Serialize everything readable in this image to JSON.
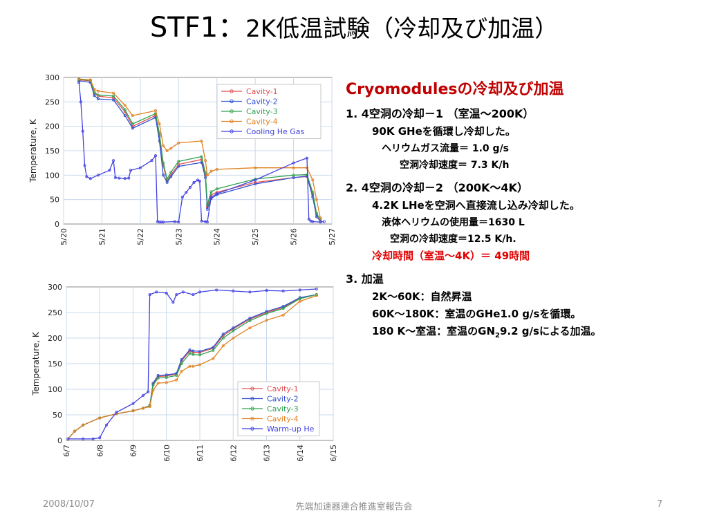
{
  "slide": {
    "title_main": "STF1：",
    "title_sub": "2K低温試験（冷却及び加温）"
  },
  "text": {
    "heading": "Cryomodulesの冷却及び加温",
    "item1_title": "1.  4空洞の冷却－1 （室温～200K）",
    "item1_line1": "90K GHeを循環し冷却した。",
    "item1_line2": "ヘリウムガス流量＝ 1.0 g/s",
    "item1_line3": "空洞冷却速度＝ 7.3 K/h",
    "item2_title": "2.  4空洞の冷却－2 （200K～4K）",
    "item2_line1": "4.2K LHeを空洞へ直接流し込み冷却した。",
    "item2_line2": "液体ヘリウムの使用量＝1630 L",
    "item2_line3": "空洞の冷却速度＝12.5 K/h.",
    "item2_time": "冷却時間（室温～4K）＝ 49時間",
    "item3_title": "3.  加温",
    "item3_line1": "2K～60K：自然昇温",
    "item3_line2": "60K～180K：室温のGHe1.0 g/sを循環。",
    "item3_line3_a": "180 K～室温：室温のGN",
    "item3_line3_sub": "2",
    "item3_line3_b": "9.2 g/sによる加温。"
  },
  "footer": {
    "date": "2008/10/07",
    "org": "先端加速器連合推進室報告会",
    "page": "7"
  },
  "chart_data": [
    {
      "type": "line",
      "title": "",
      "xlabel": "",
      "ylabel": "Temperature, K",
      "x_ticks": [
        "5/20",
        "5/21",
        "5/22",
        "5/23",
        "5/24",
        "5/25",
        "5/26",
        "5/27"
      ],
      "xlim": [
        0,
        7
      ],
      "ylim": [
        0,
        300
      ],
      "y_ticks": [
        0,
        50,
        100,
        150,
        200,
        250,
        300
      ],
      "grid": true,
      "legend_position": "top-right",
      "series": [
        {
          "name": "Cavity-1",
          "color": "#e05050",
          "x": [
            0.4,
            0.7,
            0.8,
            0.9,
            1.3,
            1.6,
            1.8,
            2.4,
            2.5,
            2.6,
            2.7,
            2.8,
            3.0,
            3.6,
            3.7,
            3.75,
            3.85,
            4.0,
            5.0,
            6.0,
            6.35,
            6.5,
            6.6,
            6.7
          ],
          "y": [
            295,
            293,
            268,
            262,
            258,
            230,
            200,
            222,
            180,
            120,
            88,
            100,
            122,
            132,
            100,
            35,
            60,
            65,
            85,
            95,
            97,
            60,
            20,
            8
          ]
        },
        {
          "name": "Cavity-2",
          "color": "#3050d0",
          "x": [
            0.4,
            0.7,
            0.8,
            0.9,
            1.3,
            1.6,
            1.8,
            2.4,
            2.5,
            2.6,
            2.7,
            2.8,
            3.0,
            3.6,
            3.7,
            3.75,
            3.85,
            4.0,
            5.0,
            6.0,
            6.35,
            6.5,
            6.6,
            6.7
          ],
          "y": [
            293,
            290,
            263,
            256,
            254,
            222,
            196,
            218,
            170,
            100,
            85,
            97,
            118,
            126,
            95,
            30,
            52,
            60,
            82,
            95,
            98,
            55,
            15,
            6
          ]
        },
        {
          "name": "Cavity-3",
          "color": "#30a050",
          "x": [
            0.4,
            0.7,
            0.8,
            0.9,
            1.3,
            1.6,
            1.8,
            2.4,
            2.5,
            2.6,
            2.7,
            2.8,
            3.0,
            3.6,
            3.7,
            3.75,
            3.85,
            4.0,
            5.0,
            6.0,
            6.35,
            6.5,
            6.6,
            6.7
          ],
          "y": [
            296,
            294,
            270,
            264,
            262,
            234,
            205,
            226,
            185,
            125,
            92,
            106,
            128,
            138,
            105,
            40,
            66,
            72,
            92,
            100,
            101,
            65,
            22,
            9
          ]
        },
        {
          "name": "Cavity-4",
          "color": "#e08020",
          "x": [
            0.4,
            0.7,
            0.8,
            0.9,
            1.3,
            1.6,
            1.8,
            2.4,
            2.5,
            2.6,
            2.7,
            2.8,
            3.0,
            3.6,
            3.7,
            3.75,
            3.85,
            4.0,
            5.0,
            6.0,
            6.35,
            6.5,
            6.6,
            6.7
          ],
          "y": [
            297,
            295,
            276,
            272,
            268,
            243,
            222,
            232,
            205,
            160,
            150,
            155,
            166,
            170,
            130,
            100,
            108,
            112,
            115,
            115,
            115,
            90,
            50,
            12
          ]
        },
        {
          "name": "Cooling He Gas",
          "color": "#4040e0",
          "x": [
            0.4,
            0.45,
            0.5,
            0.55,
            0.6,
            0.7,
            0.9,
            1.2,
            1.3,
            1.35,
            1.45,
            1.6,
            1.7,
            1.75,
            2.0,
            2.3,
            2.4,
            2.45,
            2.5,
            2.55,
            2.6,
            2.9,
            3.0,
            3.1,
            3.2,
            3.3,
            3.4,
            3.5,
            3.55,
            3.6,
            3.7,
            3.75,
            3.85,
            4.0,
            5.0,
            6.0,
            6.35,
            6.4,
            6.45,
            6.5,
            6.7,
            6.8
          ],
          "y": [
            290,
            250,
            190,
            120,
            97,
            93,
            100,
            110,
            130,
            95,
            94,
            93,
            94,
            110,
            115,
            130,
            140,
            5,
            4,
            4,
            4,
            5,
            4,
            55,
            65,
            75,
            85,
            90,
            88,
            6,
            5,
            4,
            55,
            62,
            90,
            125,
            135,
            10,
            6,
            5,
            4,
            5
          ]
        }
      ]
    },
    {
      "type": "line",
      "title": "",
      "xlabel": "",
      "ylabel": "Temperature,  K",
      "x_ticks": [
        "6/7",
        "6/8",
        "6/9",
        "6/10",
        "6/11",
        "6/12",
        "6/13",
        "6/14",
        "6/15"
      ],
      "xlim": [
        0,
        8
      ],
      "ylim": [
        0,
        300
      ],
      "y_ticks": [
        0,
        50,
        100,
        150,
        200,
        250,
        300
      ],
      "grid": true,
      "legend_position": "bottom-right",
      "series": [
        {
          "name": "Cavity-1",
          "color": "#e05050",
          "x": [
            0.05,
            0.25,
            0.5,
            1.0,
            1.5,
            2.0,
            2.3,
            2.5,
            2.6,
            2.75,
            3.0,
            3.3,
            3.45,
            3.7,
            3.8,
            4.0,
            4.4,
            4.7,
            5.0,
            5.5,
            6.0,
            6.5,
            7.0,
            7.5
          ],
          "y": [
            3,
            18,
            30,
            44,
            52,
            58,
            63,
            68,
            110,
            125,
            126,
            130,
            155,
            175,
            172,
            172,
            180,
            205,
            218,
            237,
            250,
            260,
            278,
            285
          ]
        },
        {
          "name": "Cavity-2",
          "color": "#3050d0",
          "x": [
            0.05,
            0.25,
            0.5,
            1.0,
            1.5,
            2.0,
            2.3,
            2.5,
            2.6,
            2.75,
            3.0,
            3.3,
            3.45,
            3.7,
            3.8,
            4.0,
            4.4,
            4.7,
            5.0,
            5.5,
            6.0,
            6.5,
            7.0,
            7.5
          ],
          "y": [
            3,
            18,
            30,
            44,
            52,
            58,
            63,
            68,
            112,
            127,
            128,
            131,
            158,
            177,
            175,
            174,
            182,
            208,
            220,
            239,
            252,
            262,
            279,
            285
          ]
        },
        {
          "name": "Cavity-3",
          "color": "#30a050",
          "x": [
            0.05,
            0.25,
            0.5,
            1.0,
            1.5,
            2.0,
            2.3,
            2.5,
            2.6,
            2.75,
            3.0,
            3.3,
            3.45,
            3.7,
            3.8,
            4.0,
            4.4,
            4.7,
            5.0,
            5.5,
            6.0,
            6.5,
            7.0,
            7.5
          ],
          "y": [
            3,
            18,
            30,
            44,
            52,
            58,
            63,
            68,
            108,
            122,
            123,
            127,
            150,
            170,
            168,
            167,
            176,
            200,
            214,
            234,
            248,
            258,
            277,
            285
          ]
        },
        {
          "name": "Cavity-4",
          "color": "#e08020",
          "x": [
            0.05,
            0.25,
            0.5,
            1.0,
            1.5,
            2.0,
            2.3,
            2.5,
            2.6,
            2.75,
            3.0,
            3.3,
            3.45,
            3.7,
            3.8,
            4.0,
            4.4,
            4.7,
            5.0,
            5.5,
            6.0,
            6.5,
            7.0,
            7.5
          ],
          "y": [
            3,
            18,
            30,
            44,
            52,
            58,
            63,
            66,
            98,
            112,
            113,
            118,
            135,
            145,
            145,
            148,
            160,
            185,
            200,
            220,
            235,
            245,
            272,
            283
          ]
        },
        {
          "name": "Warm-up He",
          "color": "#4040e0",
          "x": [
            0.05,
            0.5,
            0.8,
            1.0,
            1.2,
            1.5,
            2.0,
            2.3,
            2.45,
            2.5,
            2.7,
            3.0,
            3.2,
            3.3,
            3.5,
            3.8,
            4.0,
            4.5,
            5.0,
            5.5,
            6.0,
            6.5,
            7.0,
            7.5
          ],
          "y": [
            3,
            3,
            3,
            5,
            30,
            55,
            72,
            88,
            95,
            285,
            290,
            288,
            270,
            285,
            290,
            285,
            290,
            294,
            292,
            290,
            293,
            292,
            294,
            296
          ]
        }
      ]
    }
  ]
}
